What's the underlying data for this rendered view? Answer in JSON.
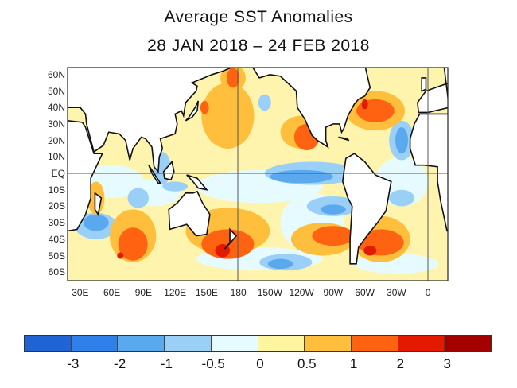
{
  "title": {
    "line1": "Average SST Anomalies",
    "line2": "28 JAN 2018 – 24 FEB 2018"
  },
  "map": {
    "lat_labels": [
      "60N",
      "50N",
      "40N",
      "30N",
      "20N",
      "10N",
      "EQ",
      "10S",
      "20S",
      "30S",
      "40S",
      "50S",
      "60S"
    ],
    "lon_labels": [
      "30E",
      "60E",
      "90E",
      "120E",
      "150E",
      "180",
      "150W",
      "120W",
      "90W",
      "60W",
      "30W",
      "0"
    ]
  },
  "colorbar": {
    "colors": [
      "#1f63d4",
      "#2f80ea",
      "#5aa8ee",
      "#9ad0f7",
      "#e6fbff",
      "#fff5a0",
      "#ffbe3c",
      "#ff6210",
      "#e41a00",
      "#a50000"
    ],
    "labels": [
      "-3",
      "-2",
      "-1",
      "-0.5",
      "0",
      "0.5",
      "1",
      "2",
      "3"
    ]
  }
}
